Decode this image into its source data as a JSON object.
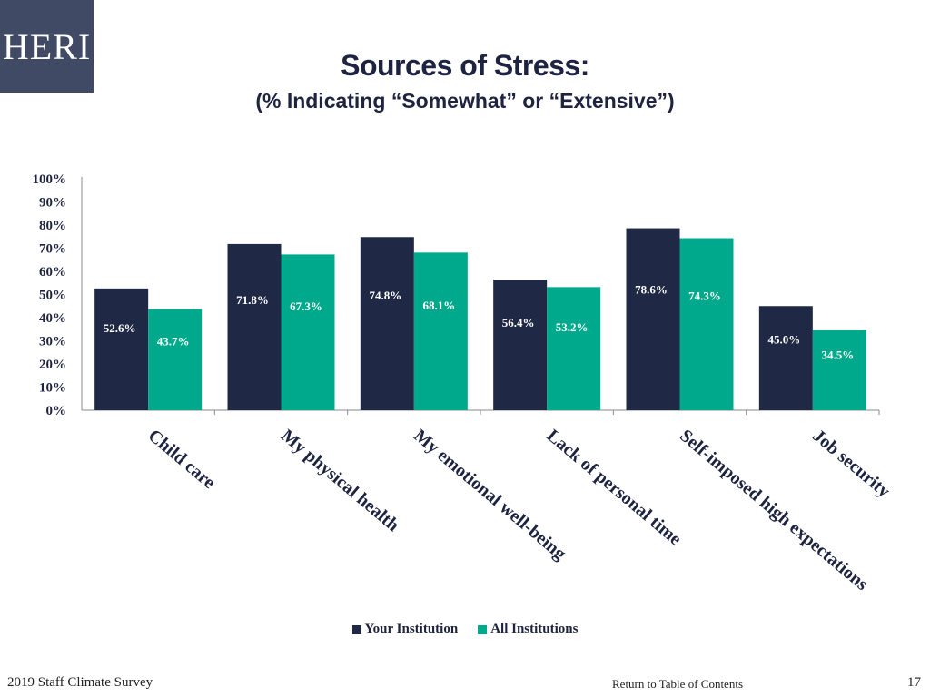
{
  "logo": {
    "text": "HERI"
  },
  "header": {
    "title": "Sources of Stress:",
    "subtitle": "(% Indicating “Somewhat” or “Extensive”)"
  },
  "colors": {
    "series1": "#1f2845",
    "series2": "#00a88c",
    "logo_bg": "#404a64",
    "title": "#1d2340"
  },
  "chart_data": {
    "type": "bar",
    "categories": [
      "Child care",
      "My physical health",
      "My emotional well-being",
      "Lack of personal time",
      "Self-imposed high expectations",
      "Job security"
    ],
    "series": [
      {
        "name": "Your Institution",
        "values": [
          52.6,
          71.8,
          74.8,
          56.4,
          78.6,
          45.0
        ],
        "labels": [
          "52.6%",
          "71.8%",
          "74.8%",
          "56.4%",
          "78.6%",
          "45.0%"
        ]
      },
      {
        "name": "All Institutions",
        "values": [
          43.7,
          67.3,
          68.1,
          53.2,
          74.3,
          34.5
        ],
        "labels": [
          "43.7%",
          "67.3%",
          "68.1%",
          "53.2%",
          "74.3%",
          "34.5%"
        ]
      }
    ],
    "yticks": [
      "0%",
      "10%",
      "20%",
      "30%",
      "40%",
      "50%",
      "60%",
      "70%",
      "80%",
      "90%",
      "100%"
    ],
    "ylim": [
      0,
      100
    ],
    "grid": false,
    "legend_position": "bottom"
  },
  "footer": {
    "left": "2019 Staff  Climate Survey",
    "link": "Return to Table of Contents",
    "page": "17"
  }
}
